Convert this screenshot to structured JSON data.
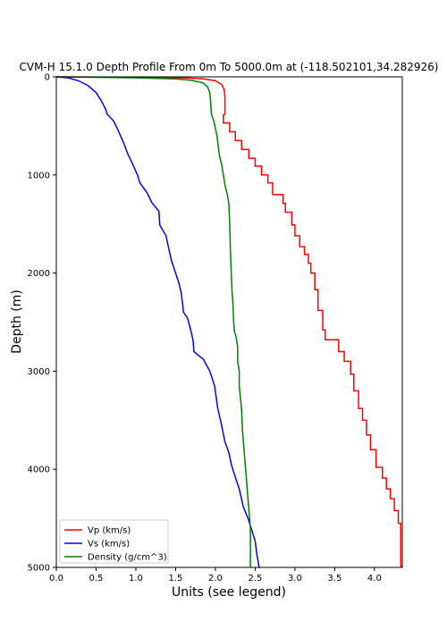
{
  "chart_data": {
    "type": "line",
    "title": "CVM-H 15.1.0 Depth Profile From 0m To 5000.0m at (-118.502101,34.282926)",
    "xlabel": "Units (see legend)",
    "ylabel": "Depth (m)",
    "xlim": [
      0.0,
      4.35
    ],
    "ylim": [
      5000,
      0
    ],
    "x_ticks": [
      "0.0",
      "0.5",
      "1.0",
      "1.5",
      "2.0",
      "2.5",
      "3.0",
      "3.5",
      "4.0"
    ],
    "x_tick_values": [
      0.0,
      0.5,
      1.0,
      1.5,
      2.0,
      2.5,
      3.0,
      3.5,
      4.0
    ],
    "y_ticks": [
      "0",
      "1000",
      "2000",
      "3000",
      "4000",
      "5000"
    ],
    "y_tick_values": [
      0,
      1000,
      2000,
      3000,
      4000,
      5000
    ],
    "grid": false,
    "legend_position": "lower-left",
    "series": [
      {
        "name": "Vp (km/s)",
        "color": "#ff0000",
        "x": [
          0.0,
          1.0,
          1.6,
          1.85,
          2.0,
          2.08,
          2.11,
          2.12,
          2.12,
          2.1,
          2.1,
          2.18,
          2.18,
          2.25,
          2.25,
          2.33,
          2.33,
          2.42,
          2.42,
          2.5,
          2.5,
          2.58,
          2.58,
          2.66,
          2.66,
          2.72,
          2.72,
          2.85,
          2.85,
          2.88,
          2.88,
          2.96,
          2.96,
          3.0,
          3.0,
          3.06,
          3.06,
          3.12,
          3.12,
          3.17,
          3.17,
          3.2,
          3.2,
          3.25,
          3.25,
          3.29,
          3.29,
          3.35,
          3.35,
          3.38,
          3.38,
          3.55,
          3.55,
          3.62,
          3.62,
          3.7,
          3.7,
          3.74,
          3.74,
          3.8,
          3.8,
          3.85,
          3.85,
          3.9,
          3.9,
          3.95,
          3.95,
          4.02,
          4.02,
          4.1,
          4.1,
          4.15,
          4.15,
          4.2,
          4.2,
          4.25,
          4.25,
          4.3,
          4.3,
          4.33,
          4.33,
          4.35
        ],
        "y": [
          0,
          5,
          10,
          20,
          40,
          80,
          130,
          200,
          380,
          390,
          470,
          470,
          560,
          560,
          650,
          650,
          740,
          740,
          830,
          830,
          910,
          910,
          1000,
          1000,
          1080,
          1080,
          1200,
          1200,
          1290,
          1290,
          1380,
          1380,
          1510,
          1510,
          1620,
          1620,
          1730,
          1730,
          1810,
          1810,
          1900,
          1900,
          2000,
          2000,
          2170,
          2170,
          2380,
          2380,
          2580,
          2580,
          2680,
          2680,
          2800,
          2800,
          2900,
          2900,
          3030,
          3030,
          3200,
          3200,
          3380,
          3380,
          3500,
          3500,
          3650,
          3650,
          3800,
          3800,
          3980,
          3980,
          4090,
          4090,
          4200,
          4200,
          4300,
          4300,
          4420,
          4420,
          4550,
          4550,
          4980,
          5000
        ]
      },
      {
        "name": "Vs (km/s)",
        "color": "#0000ff",
        "x": [
          0.0,
          0.15,
          0.28,
          0.4,
          0.5,
          0.57,
          0.62,
          0.64,
          0.64,
          0.72,
          0.72,
          0.78,
          0.78,
          0.85,
          0.85,
          0.9,
          0.9,
          0.96,
          0.96,
          1.02,
          1.02,
          1.05,
          1.05,
          1.14,
          1.14,
          1.2,
          1.2,
          1.29,
          1.29,
          1.3,
          1.3,
          1.38,
          1.38,
          1.4,
          1.4,
          1.45,
          1.45,
          1.5,
          1.5,
          1.54,
          1.54,
          1.57,
          1.57,
          1.6,
          1.6,
          1.65,
          1.65,
          1.69,
          1.69,
          1.72,
          1.72,
          1.73,
          1.73,
          1.85,
          1.85,
          1.93,
          1.93,
          1.99,
          1.99,
          2.03,
          2.03,
          2.07,
          2.07,
          2.12,
          2.12,
          2.17,
          2.17,
          2.2,
          2.2,
          2.25,
          2.25,
          2.3,
          2.3,
          2.35,
          2.35,
          2.41,
          2.41,
          2.45,
          2.45,
          2.5,
          2.5,
          2.52,
          2.52,
          2.55,
          2.56
        ],
        "y": [
          0,
          10,
          40,
          90,
          160,
          250,
          330,
          380,
          380,
          450,
          450,
          550,
          550,
          680,
          680,
          790,
          790,
          890,
          890,
          1000,
          1000,
          1080,
          1080,
          1180,
          1180,
          1280,
          1280,
          1370,
          1370,
          1510,
          1510,
          1620,
          1620,
          1700,
          1700,
          1880,
          1880,
          2000,
          2000,
          2100,
          2100,
          2200,
          2200,
          2400,
          2400,
          2460,
          2460,
          2580,
          2580,
          2690,
          2690,
          2800,
          2800,
          2880,
          2880,
          3000,
          3000,
          3150,
          3150,
          3380,
          3380,
          3520,
          3520,
          3720,
          3720,
          3830,
          3830,
          3950,
          3950,
          4080,
          4080,
          4200,
          4200,
          4380,
          4380,
          4500,
          4500,
          4600,
          4600,
          4730,
          4730,
          4860,
          4860,
          5000,
          5000
        ]
      },
      {
        "name": "Density (g/cm^3)",
        "color": "#008000",
        "x": [
          0.0,
          1.0,
          1.5,
          1.7,
          1.84,
          1.9,
          1.93,
          1.94,
          1.95,
          1.95,
          1.98,
          1.98,
          2.02,
          2.02,
          2.05,
          2.05,
          2.08,
          2.08,
          2.1,
          2.1,
          2.12,
          2.12,
          2.15,
          2.15,
          2.17,
          2.17,
          2.18,
          2.19,
          2.2,
          2.21,
          2.22,
          2.23,
          2.24,
          2.25,
          2.26,
          2.27,
          2.28,
          2.28,
          2.3,
          2.3,
          2.33,
          2.34,
          2.36,
          2.38,
          2.4,
          2.42,
          2.44,
          2.44
        ],
        "y": [
          0,
          10,
          20,
          35,
          60,
          100,
          160,
          250,
          380,
          380,
          450,
          450,
          600,
          600,
          800,
          800,
          900,
          900,
          1000,
          1000,
          1100,
          1100,
          1200,
          1200,
          1300,
          1300,
          1500,
          1800,
          2000,
          2200,
          2300,
          2500,
          2600,
          2620,
          2650,
          2700,
          2750,
          2900,
          3000,
          3150,
          3400,
          3600,
          3800,
          4000,
          4200,
          4400,
          4600,
          5000
        ]
      }
    ]
  }
}
